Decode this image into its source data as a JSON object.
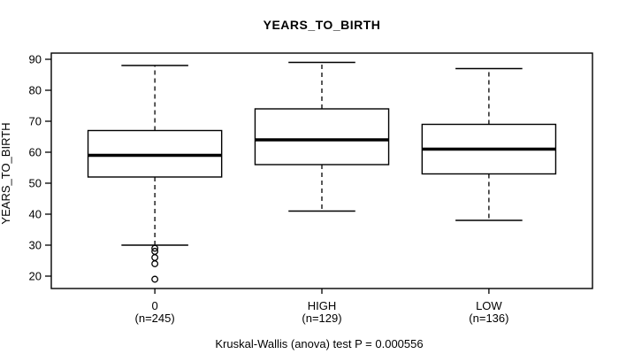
{
  "chart_data": {
    "type": "boxplot",
    "title": "YEARS_TO_BIRTH",
    "ylabel": "YEARS_TO_BIRTH",
    "footer": "Kruskal-Wallis (anova) test P = 0.000556",
    "y_ticks": [
      20,
      30,
      40,
      50,
      60,
      70,
      80,
      90
    ],
    "ylim": [
      16,
      92
    ],
    "grid": false,
    "legend": null,
    "groups": [
      {
        "label": "0",
        "count_label": "(n=245)",
        "whisker_low": 30,
        "q1": 52,
        "median": 59,
        "q3": 67,
        "whisker_high": 88,
        "outliers": [
          29,
          28,
          26,
          24,
          19
        ]
      },
      {
        "label": "HIGH",
        "count_label": "(n=129)",
        "whisker_low": 41,
        "q1": 56,
        "median": 64,
        "q3": 74,
        "whisker_high": 89,
        "outliers": []
      },
      {
        "label": "LOW",
        "count_label": "(n=136)",
        "whisker_low": 38,
        "q1": 53,
        "median": 61,
        "q3": 69,
        "whisker_high": 87,
        "outliers": []
      }
    ],
    "colors": {
      "stroke": "#000000",
      "box_fill": "#ffffff",
      "background": "#ffffff"
    }
  }
}
